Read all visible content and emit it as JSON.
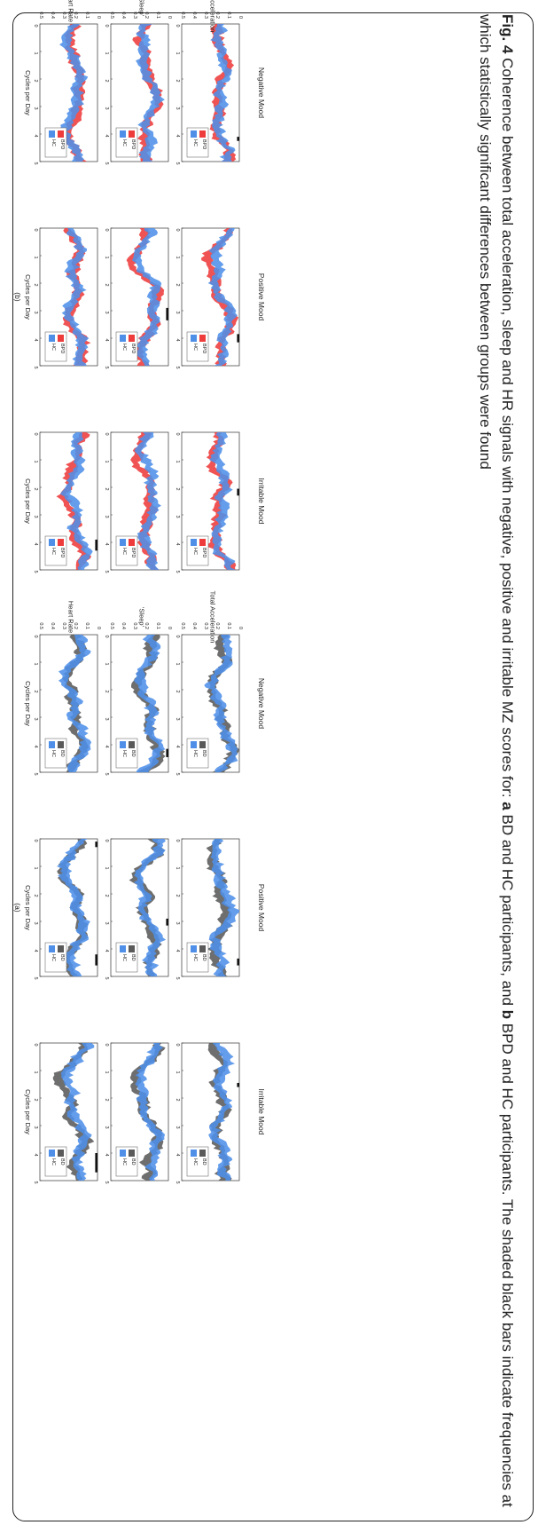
{
  "caption": {
    "label": "Fig. 4",
    "text_1": " Coherence between total acceleration, sleep and HR signals with negative, positive and irritable MZ scores for: ",
    "bold_a": "a",
    "text_2": " BD and HC participants, and ",
    "bold_b": "b",
    "text_3": " BPD and HC participants. The shaded black bars indicate frequencies at which statistically significant differences between groups were found"
  },
  "colors": {
    "bd": "#5a5a5a",
    "bpd": "#ee3b3b",
    "hc": "#4f8fe8",
    "sig": "#111111"
  },
  "chart_data": [
    {
      "type": "area",
      "panel_label": "(a)",
      "columns": [
        "Negative Mood",
        "Positive Mood",
        "Irritable Mood"
      ],
      "rows": [
        "Total Acceleration",
        "'Sleep'",
        "Heart Rate"
      ],
      "xlabel": "Cycles per Day",
      "xlim": [
        0,
        5
      ],
      "xticks": [
        "0",
        "1",
        "2",
        "3",
        "4",
        "5"
      ],
      "ylim": [
        0,
        0.5
      ],
      "yticks": [
        "0",
        "0.1",
        "0.2",
        "0.3",
        "0.4",
        "0.5"
      ],
      "legend": [
        "BD",
        "HC"
      ],
      "legend_position": "top-right",
      "significant_bands": [
        [
          [],
          [
            [
              4.35,
              4.6
            ]
          ],
          [
            [
              1.45,
              1.6
            ]
          ]
        ],
        [
          [
            [
              4.15,
              4.45
            ]
          ],
          [
            [
              2.9,
              3.15
            ]
          ],
          []
        ],
        [
          [],
          [
            [
              0.1,
              0.3
            ],
            [
              4.2,
              4.6
            ]
          ],
          [
            [
              4.0,
              4.7
            ]
          ]
        ]
      ]
    },
    {
      "type": "area",
      "panel_label": "(b)",
      "columns": [
        "Negative Mood",
        "Positive Mood",
        "Irritable Mood"
      ],
      "rows": [
        "Total Acceleration",
        "'Sleep'",
        "Heart Rate"
      ],
      "xlabel": "Cycles per Day",
      "xlim": [
        0,
        5
      ],
      "xticks": [
        "0",
        "1",
        "2",
        "3",
        "4",
        "5"
      ],
      "ylim": [
        0,
        0.5
      ],
      "yticks": [
        "0",
        "0.1",
        "0.2",
        "0.3",
        "0.4",
        "0.5"
      ],
      "legend": [
        "BPD",
        "HC"
      ],
      "legend_position": "top-right",
      "significant_bands": [
        [
          [
            [
              4.1,
              4.25
            ]
          ],
          [
            [
              3.85,
              4.15
            ]
          ],
          [
            [
              2.05,
              2.3
            ]
          ]
        ],
        [
          [],
          [
            [
              2.9,
              3.35
            ]
          ],
          []
        ],
        [
          [],
          [],
          [
            [
              3.9,
              4.3
            ]
          ]
        ]
      ]
    }
  ]
}
